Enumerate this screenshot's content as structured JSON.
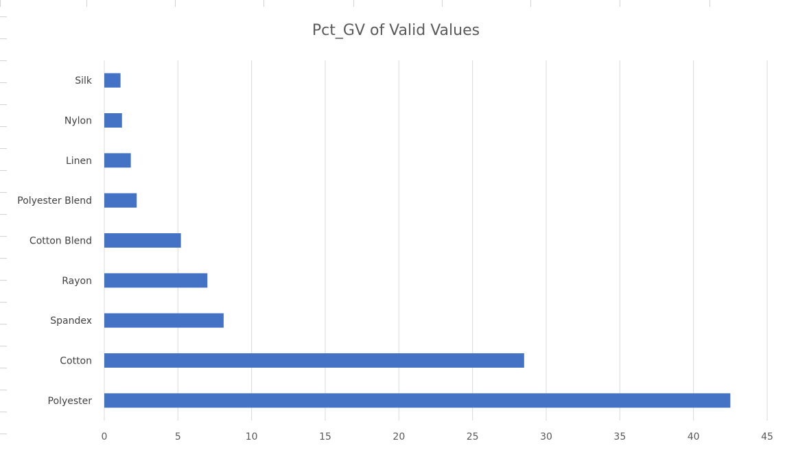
{
  "chart_data": {
    "type": "bar",
    "orientation": "horizontal",
    "title": "Pct_GV of Valid Values",
    "xlabel": "",
    "ylabel": "",
    "categories": [
      "Polyester",
      "Cotton",
      "Spandex",
      "Rayon",
      "Cotton Blend",
      "Polyester Blend",
      "Linen",
      "Nylon",
      "Silk"
    ],
    "values": [
      42.5,
      28.5,
      8.1,
      7.0,
      5.2,
      2.2,
      1.8,
      1.2,
      1.1
    ],
    "xlim": [
      0,
      45
    ],
    "xticks": [
      "0",
      "5",
      "10",
      "15",
      "20",
      "25",
      "30",
      "35",
      "40",
      "45"
    ],
    "grid": "vertical",
    "bar_color": "#4472C4",
    "grid_color": "#D9D9D9"
  }
}
